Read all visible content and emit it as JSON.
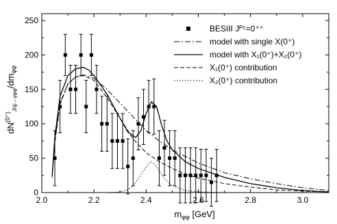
{
  "chart_data": {
    "type": "line",
    "xlabel": "mφφ [GeV]",
    "ylabel": "dN(0⁺)J/ψ→γφφ/dmφφ",
    "xlim": [
      2.0,
      3.1
    ],
    "ylim": [
      0,
      260
    ],
    "x_ticks": [
      2.0,
      2.2,
      2.4,
      2.6,
      2.8,
      3.0
    ],
    "x_tick_labels": [
      "2.0",
      "2.2",
      "2.4",
      "2.6",
      "2.8",
      "3.0"
    ],
    "y_ticks": [
      0,
      50,
      100,
      150,
      200,
      250
    ],
    "y_tick_labels": [
      "0",
      "50",
      "100",
      "150",
      "200",
      "250"
    ],
    "grid": false,
    "legend_position": "top-right",
    "legend": [
      {
        "label": "BESIII Jᴾᶜ=0⁺⁺",
        "style": "square-marker"
      },
      {
        "label": "model with single X(0⁺)",
        "style": "dash-dot"
      },
      {
        "label": "model with X₁(0⁺)+X₂(0⁺)",
        "style": "solid"
      },
      {
        "label": "X₁(0⁺) contribution",
        "style": "dashed"
      },
      {
        "label": "X₂(0⁺) contribution",
        "style": "dotted"
      }
    ],
    "data_points": {
      "name": "BESIII Jᴾᶜ=0⁺⁺",
      "x": [
        2.05,
        2.07,
        2.09,
        2.11,
        2.13,
        2.15,
        2.17,
        2.19,
        2.21,
        2.23,
        2.25,
        2.27,
        2.29,
        2.31,
        2.33,
        2.35,
        2.37,
        2.39,
        2.41,
        2.43,
        2.45,
        2.47,
        2.49,
        2.51,
        2.53,
        2.55,
        2.57,
        2.59,
        2.61,
        2.63,
        2.65,
        2.67
      ],
      "y": [
        50,
        125,
        200,
        150,
        150,
        200,
        125,
        200,
        150,
        100,
        100,
        75,
        75,
        75,
        38,
        50,
        100,
        110,
        125,
        125,
        50,
        65,
        50,
        50,
        25,
        25,
        25,
        25,
        25,
        25,
        15,
        25
      ],
      "err": [
        40,
        38,
        30,
        35,
        35,
        30,
        38,
        30,
        35,
        40,
        40,
        40,
        40,
        40,
        40,
        40,
        38,
        40,
        38,
        40,
        40,
        40,
        40,
        40,
        40,
        40,
        40,
        40,
        38,
        38,
        35,
        38
      ]
    },
    "series": [
      {
        "name": "model with single X(0⁺)",
        "style": "dash-dot",
        "x": [
          2.04,
          2.05,
          2.07,
          2.1,
          2.13,
          2.16,
          2.2,
          2.25,
          2.3,
          2.35,
          2.4,
          2.45,
          2.5,
          2.6,
          2.7,
          2.8,
          2.9,
          3.0,
          3.1
        ],
        "y": [
          25,
          75,
          130,
          158,
          168,
          171,
          166,
          150,
          130,
          110,
          90,
          75,
          62,
          43,
          29,
          20,
          13,
          7,
          3
        ]
      },
      {
        "name": "model with X₁(0⁺)+X₂(0⁺)",
        "style": "solid",
        "x": [
          2.04,
          2.05,
          2.07,
          2.1,
          2.13,
          2.16,
          2.18,
          2.2,
          2.25,
          2.3,
          2.33,
          2.36,
          2.38,
          2.4,
          2.42,
          2.44,
          2.46,
          2.48,
          2.5,
          2.55,
          2.6,
          2.7,
          2.8,
          2.9,
          3.0,
          3.1
        ],
        "y": [
          25,
          80,
          140,
          170,
          180,
          182,
          178,
          170,
          143,
          108,
          88,
          80,
          90,
          115,
          132,
          125,
          97,
          75,
          62,
          45,
          35,
          22,
          13,
          7,
          3,
          1
        ]
      },
      {
        "name": "X₁(0⁺) contribution",
        "style": "dashed",
        "x": [
          2.04,
          2.05,
          2.07,
          2.1,
          2.13,
          2.16,
          2.2,
          2.25,
          2.3,
          2.35,
          2.4,
          2.45,
          2.5,
          2.55,
          2.6,
          2.7,
          2.8,
          2.9,
          3.0,
          3.1
        ],
        "y": [
          22,
          72,
          128,
          158,
          168,
          170,
          163,
          138,
          108,
          78,
          58,
          45,
          35,
          27,
          21,
          13,
          8,
          4,
          2,
          1
        ]
      },
      {
        "name": "X₂(0⁺) contribution",
        "style": "dotted",
        "x": [
          2.0,
          2.25,
          2.3,
          2.33,
          2.35,
          2.37,
          2.39,
          2.41,
          2.42,
          2.43,
          2.45,
          2.47,
          2.5,
          2.55,
          2.6,
          2.7,
          2.8,
          3.1
        ],
        "y": [
          0,
          0,
          1,
          4,
          10,
          20,
          32,
          42,
          45,
          42,
          32,
          20,
          10,
          3,
          1,
          0,
          0,
          0
        ]
      }
    ]
  }
}
